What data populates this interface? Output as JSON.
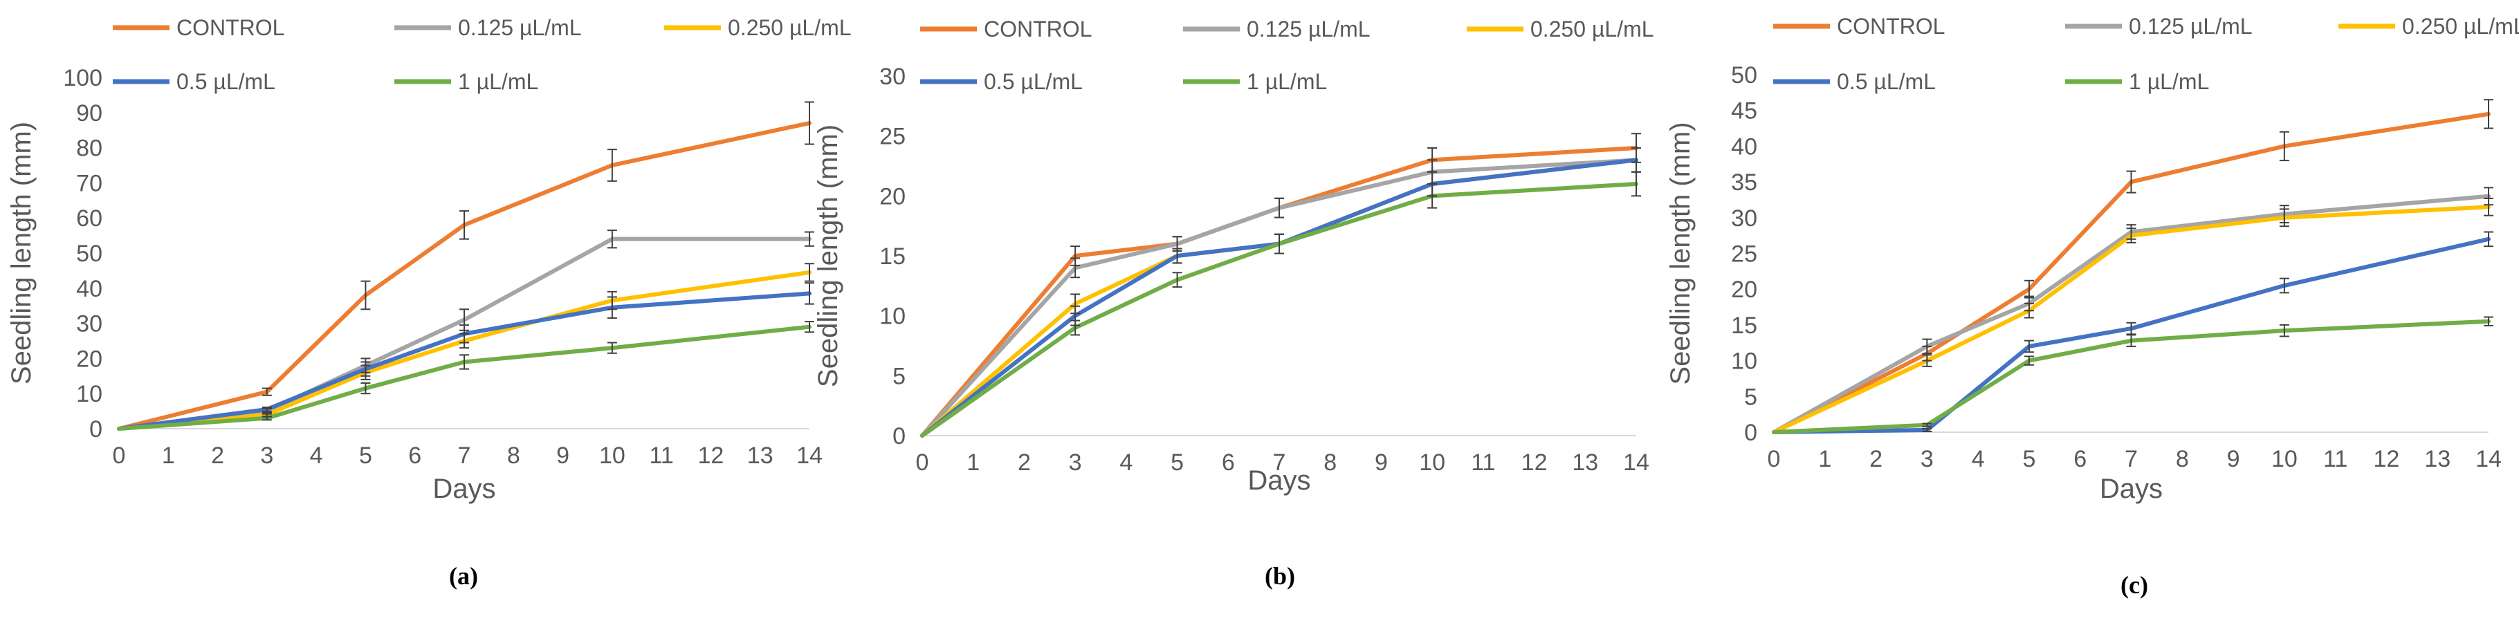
{
  "series_style": [
    {
      "name": "CONTROL",
      "color": "#ED7D31"
    },
    {
      "name": "0.125 µL/mL",
      "color": "#A5A5A5"
    },
    {
      "name": "0.250 µL/mL",
      "color": "#FFC000"
    },
    {
      "name": "0.5 µL/mL",
      "color": "#4472C4"
    },
    {
      "name": "1 µL/mL",
      "color": "#70AD47"
    }
  ],
  "chart_data": [
    {
      "type": "line",
      "panel_label": "(a)",
      "xlabel": "Days",
      "ylabel": "Seedling length (mm)",
      "xlim": [
        0,
        14
      ],
      "ylim": [
        0,
        100
      ],
      "x_ticks": [
        0,
        1,
        2,
        3,
        4,
        5,
        6,
        7,
        8,
        9,
        10,
        11,
        12,
        13,
        14
      ],
      "y_ticks": [
        0,
        10,
        20,
        30,
        40,
        50,
        60,
        70,
        80,
        90,
        100
      ],
      "x": [
        0,
        3,
        5,
        7,
        10,
        14
      ],
      "series": [
        {
          "name": "CONTROL",
          "values": [
            0,
            10.5,
            38,
            58,
            75,
            87
          ],
          "errors": [
            0,
            1,
            4,
            4,
            4.5,
            6
          ]
        },
        {
          "name": "0.125 µL/mL",
          "values": [
            0,
            5,
            18,
            31,
            54,
            54
          ],
          "errors": [
            0,
            0.8,
            2,
            3,
            2.5,
            2
          ]
        },
        {
          "name": "0.250 µL/mL",
          "values": [
            0,
            4,
            16,
            25,
            36.5,
            44.5
          ],
          "errors": [
            0,
            0.6,
            2,
            2,
            2.5,
            2.5
          ]
        },
        {
          "name": "0.5 µL/mL",
          "values": [
            0,
            5.5,
            17,
            27,
            34.5,
            38.5
          ],
          "errors": [
            0,
            0.6,
            2,
            2.5,
            3,
            3
          ]
        },
        {
          "name": "1 µL/mL",
          "values": [
            0,
            3,
            11.5,
            19,
            23,
            29
          ],
          "errors": [
            0,
            0.5,
            1.5,
            2,
            1.5,
            1.5
          ]
        }
      ]
    },
    {
      "type": "line",
      "panel_label": "(b)",
      "xlabel": "Days",
      "ylabel": "Seedling length (mm)",
      "xlim": [
        0,
        14
      ],
      "ylim": [
        0,
        30
      ],
      "x_ticks": [
        0,
        1,
        2,
        3,
        4,
        5,
        6,
        7,
        8,
        9,
        10,
        11,
        12,
        13,
        14
      ],
      "y_ticks": [
        0,
        5,
        10,
        15,
        20,
        25,
        30
      ],
      "x": [
        0,
        3,
        5,
        7,
        10,
        14
      ],
      "series": [
        {
          "name": "CONTROL",
          "values": [
            0,
            15,
            16,
            19,
            23,
            24
          ],
          "errors": [
            0,
            0.8,
            0.6,
            0.8,
            1,
            1.2
          ]
        },
        {
          "name": "0.125 µL/mL",
          "values": [
            0,
            14,
            16,
            19,
            22,
            23
          ],
          "errors": [
            0,
            0.8,
            0.6,
            0.8,
            1,
            1
          ]
        },
        {
          "name": "0.250 µL/mL",
          "values": [
            0,
            11,
            15,
            16,
            21,
            23
          ],
          "errors": [
            0,
            0.8,
            0.6,
            0.8,
            1,
            1
          ]
        },
        {
          "name": "0.5 µL/mL",
          "values": [
            0,
            10,
            15,
            16,
            21,
            23
          ],
          "errors": [
            0,
            0.8,
            0.6,
            0.8,
            1,
            1
          ]
        },
        {
          "name": "1 µL/mL",
          "values": [
            0,
            9,
            13,
            16,
            20,
            21
          ],
          "errors": [
            0,
            0.6,
            0.6,
            0.8,
            1,
            1
          ]
        }
      ]
    },
    {
      "type": "line",
      "panel_label": "(c)",
      "xlabel": "Days",
      "ylabel": "Seedling length (mm)",
      "xlim": [
        0,
        14
      ],
      "ylim": [
        0,
        50
      ],
      "x_ticks": [
        0,
        1,
        2,
        3,
        4,
        5,
        6,
        7,
        8,
        9,
        10,
        11,
        12,
        13,
        14
      ],
      "y_ticks": [
        0,
        5,
        10,
        15,
        20,
        25,
        30,
        35,
        40,
        45,
        50
      ],
      "x": [
        0,
        3,
        5,
        7,
        10,
        14
      ],
      "series": [
        {
          "name": "CONTROL",
          "values": [
            0,
            11,
            20,
            35,
            40,
            44.5
          ],
          "errors": [
            0,
            1,
            1.2,
            1.5,
            2,
            2
          ]
        },
        {
          "name": "0.125 µL/mL",
          "values": [
            0,
            12,
            18,
            28,
            30.5,
            33
          ],
          "errors": [
            0,
            1,
            1,
            1,
            1.2,
            1.2
          ]
        },
        {
          "name": "0.250 µL/mL",
          "values": [
            0,
            10,
            17,
            27.5,
            30,
            31.5
          ],
          "errors": [
            0,
            0.8,
            1,
            1,
            1.2,
            1.2
          ]
        },
        {
          "name": "0.5 µL/mL",
          "values": [
            0,
            0.3,
            12,
            14.5,
            20.5,
            27
          ],
          "errors": [
            0,
            0.2,
            0.8,
            0.8,
            1,
            1
          ]
        },
        {
          "name": "1 µL/mL",
          "values": [
            0,
            1,
            10,
            12.8,
            14.2,
            15.5
          ],
          "errors": [
            0,
            0.2,
            0.6,
            0.8,
            0.8,
            0.6
          ]
        }
      ]
    }
  ]
}
